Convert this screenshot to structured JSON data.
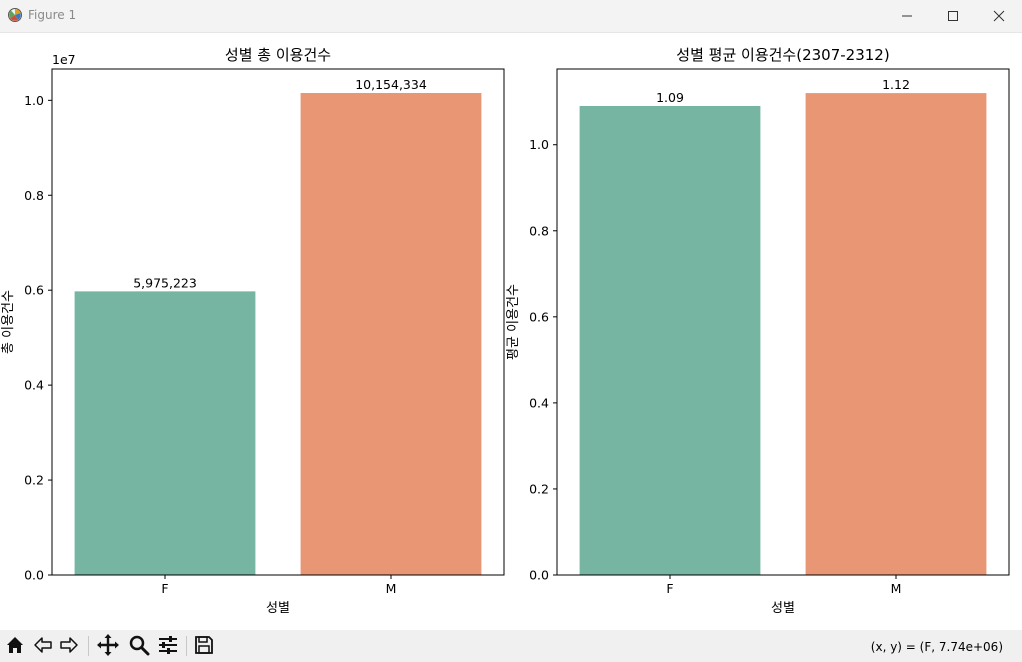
{
  "window": {
    "title": "Figure 1",
    "icon": "matplotlib-icon",
    "controls": [
      "minimize-icon",
      "maximize-icon",
      "close-icon"
    ]
  },
  "chart_data": [
    {
      "type": "bar",
      "title": "성별 총 이용건수",
      "xlabel": "성별",
      "ylabel": "총 이용건수",
      "categories": [
        "F",
        "M"
      ],
      "values": [
        5975223,
        10154334
      ],
      "data_labels": [
        "5,975,223",
        "10,154,334"
      ],
      "colors": [
        "#75b5a1",
        "#e99674"
      ],
      "offset_text": "1e7",
      "ylim": [
        0,
        10660000
      ],
      "yticks": [
        0,
        2000000,
        4000000,
        6000000,
        8000000,
        10000000
      ],
      "ytick_labels": [
        "0.0",
        "0.2",
        "0.4",
        "0.6",
        "0.8",
        "1.0"
      ],
      "grid": false,
      "legend": "none"
    },
    {
      "type": "bar",
      "title": "성별 평균 이용건수(2307-2312)",
      "xlabel": "성별",
      "ylabel": "평균 이용건수",
      "categories": [
        "F",
        "M"
      ],
      "values": [
        1.09,
        1.12
      ],
      "data_labels": [
        "1.09",
        "1.12"
      ],
      "colors": [
        "#75b5a1",
        "#e99674"
      ],
      "ylim": [
        0,
        1.176
      ],
      "yticks": [
        0,
        0.2,
        0.4,
        0.6,
        0.8,
        1.0
      ],
      "ytick_labels": [
        "0.0",
        "0.2",
        "0.4",
        "0.6",
        "0.8",
        "1.0"
      ],
      "grid": false,
      "legend": "none"
    }
  ],
  "toolbar": {
    "buttons": [
      "home-icon",
      "back-icon",
      "forward-icon",
      "pan-icon",
      "zoom-icon",
      "configure-subplots-icon",
      "save-icon"
    ],
    "coords": "(x, y) = (F, 7.74e+06)"
  }
}
